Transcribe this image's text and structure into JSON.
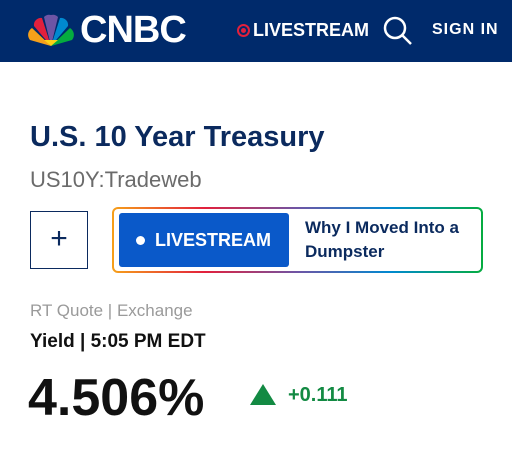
{
  "header": {
    "logo": "CNBC",
    "livestream": "LIVESTREAM",
    "sign_in": "SIGN IN"
  },
  "quote": {
    "title": "U.S. 10 Year Treasury",
    "symbol": "US10Y:Tradeweb",
    "add_button": "+",
    "livestream_button": "LIVESTREAM",
    "promo": "Why I Moved Into a Dumpster",
    "source": "RT Quote | Exchange",
    "time_label": "Yield | 5:05 PM EDT",
    "price": "4.506%",
    "change": "+0.111"
  }
}
